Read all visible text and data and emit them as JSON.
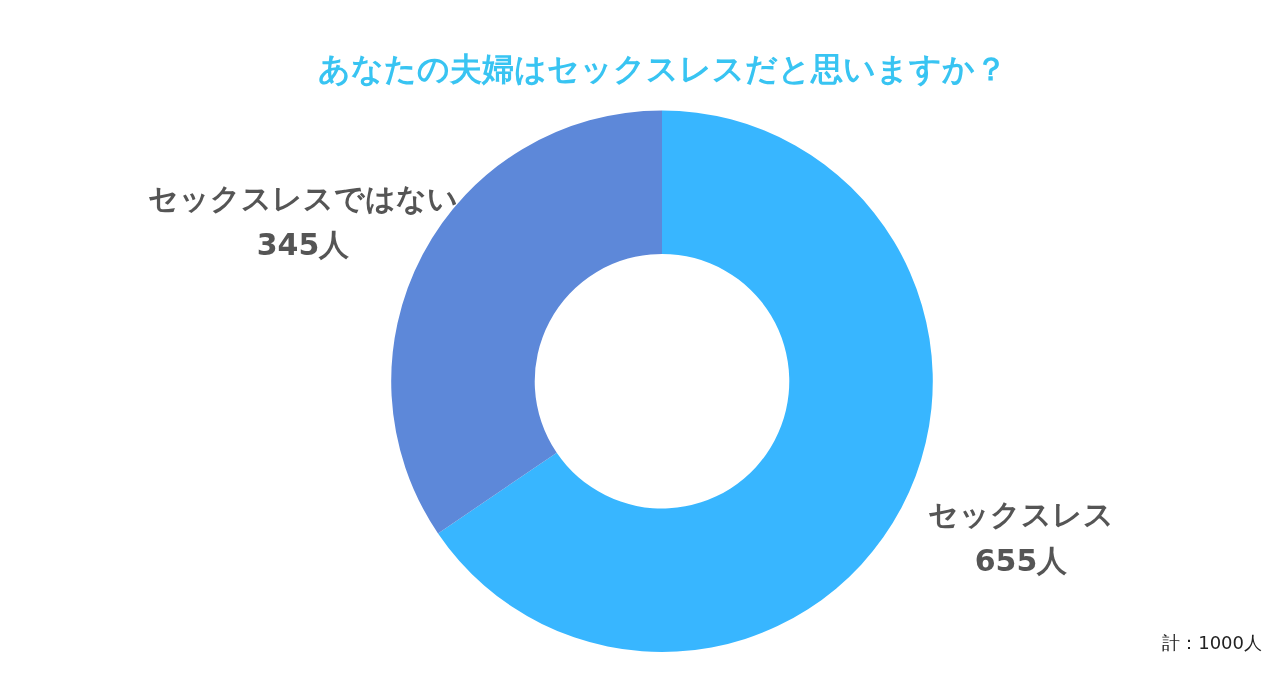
{
  "chart_data": {
    "type": "donut",
    "title": "あなたの夫婦はセックスレスだと思いますか？",
    "categories": [
      "セックスレス",
      "セックスレスではない"
    ],
    "values": [
      655,
      345
    ],
    "value_labels": [
      "655人",
      "345人"
    ],
    "colors": [
      "#38b6ff",
      "#5d88d9"
    ],
    "legend": false,
    "annotations": [
      "計：1000人"
    ]
  }
}
